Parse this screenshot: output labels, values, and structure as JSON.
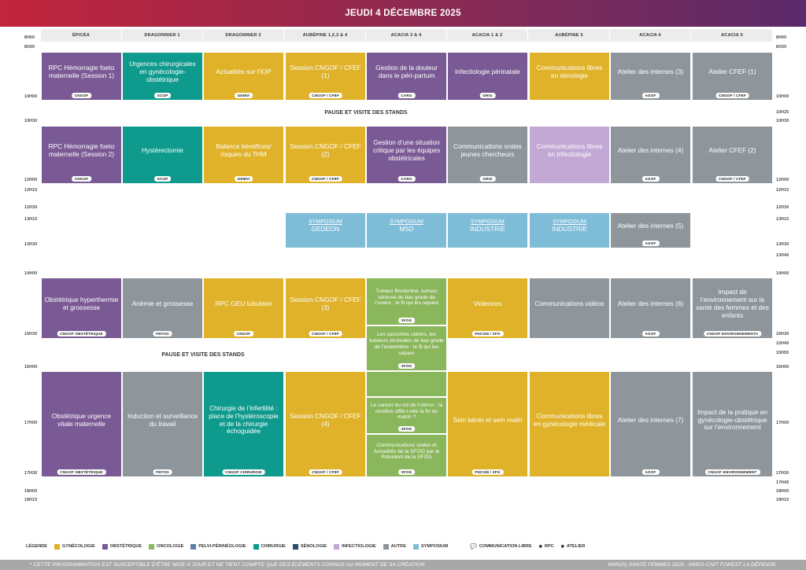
{
  "title": "JEUDI 4 DÉCEMBRE 2025",
  "columns": [
    "ÉPICÉA",
    "DRAGONNIER 1",
    "DRAGONNIER 2",
    "AUBÉPINE 1,2,3 & 4",
    "ACACIA 3 & 4",
    "ACACIA 1 & 2",
    "AUBÉPINE 5",
    "ACACIA 6",
    "ACACIA 5"
  ],
  "times_left": [
    "8H00",
    "8H30",
    "10H00",
    "10H30",
    "12H00",
    "12H15",
    "12H30",
    "13H15",
    "13H30",
    "14H00",
    "15H30",
    "16H00",
    "17H00",
    "17H30",
    "18H00",
    "18H15"
  ],
  "times_right": [
    "8H00",
    "8H30",
    "10H00",
    "10H25",
    "10H30",
    "12H00",
    "12H15",
    "12H30",
    "13H15",
    "13H30",
    "13H40",
    "14H00",
    "15H30",
    "15H40",
    "15H55",
    "16H00",
    "17H00",
    "17H30",
    "17H45",
    "18H00",
    "18H15"
  ],
  "breaks": [
    "PAUSE ET VISITE DES STANDS",
    "PAUSE ET VISITE DES STANDS"
  ],
  "colors": {
    "gynecologie": "#e0b22a",
    "obstetrique": "#7a5a94",
    "oncologie": "#8ab65c",
    "pelvi": "#5c7fa8",
    "chirurgie": "#0f9a8e",
    "senologie": "#2d4c6e",
    "infectiologie": "#c2a8d4",
    "autre": "#8e969b",
    "symposium": "#7fbcd8"
  },
  "events": [
    {
      "title": "RPC Hémorragie foeto maternelle (Session 1)",
      "badge": "CNGOF",
      "cat": "obstetrique"
    },
    {
      "title": "Urgences chirurgicales en gynécologie-obstétrique",
      "badge": "SCGP",
      "cat": "chirurgie"
    },
    {
      "title": "Actualités sur l’IOP",
      "badge": "GEMVI",
      "cat": "gynecologie"
    },
    {
      "title": "Session CNGOF / CFEF (1)",
      "badge": "CNGOF / CFEF",
      "cat": "gynecologie"
    },
    {
      "title": "Gestion de la douleur dans le péri-partum",
      "badge": "CARO",
      "cat": "obstetrique"
    },
    {
      "title": "Infectiologie périnatale",
      "badge": "GRIG",
      "cat": "obstetrique"
    },
    {
      "title": "Communications libres en sénologie",
      "badge": "",
      "cat": "gynecologie"
    },
    {
      "title": "Atelier des internes (3)",
      "badge": "AGOF",
      "cat": "autre"
    },
    {
      "title": "Atelier CFEF (1)",
      "badge": "CNGOF / CFEF",
      "cat": "autre"
    },
    {
      "title": "RPC Hémorragie foeto maternelle (Session 2)",
      "badge": "CNGOF",
      "cat": "obstetrique"
    },
    {
      "title": "Hystérectomie",
      "badge": "SCGP",
      "cat": "chirurgie"
    },
    {
      "title": "Balance bénéfices/ risques du THM",
      "badge": "GEMVI",
      "cat": "gynecologie"
    },
    {
      "title": "Session CNGOF / CFEF (2)",
      "badge": "CNGOF / CFEF",
      "cat": "gynecologie"
    },
    {
      "title": "Gestion d’une situation critique par les équipes obstétricales",
      "badge": "CARO",
      "cat": "obstetrique"
    },
    {
      "title": "Communications orales jeunes chercheurs",
      "badge": "GRIG",
      "cat": "autre"
    },
    {
      "title": "Communications libres en infectiologie",
      "badge": "",
      "cat": "infectiologie"
    },
    {
      "title": "Atelier des internes (4)",
      "badge": "AGOF",
      "cat": "autre"
    },
    {
      "title": "Atelier CFEF (2)",
      "badge": "CNGOF / CFEF",
      "cat": "autre"
    },
    {
      "title": "SYMPOSIUM",
      "sub": "GEDEON",
      "badge": "",
      "cat": "symposium"
    },
    {
      "title": "SYMPOSIUM",
      "sub": "MSD",
      "badge": "",
      "cat": "symposium"
    },
    {
      "title": "SYMPOSIUM",
      "sub": "INDUSTRIE",
      "badge": "",
      "cat": "symposium"
    },
    {
      "title": "SYMPOSIUM",
      "sub": "INDUSTRIE",
      "badge": "",
      "cat": "symposium"
    },
    {
      "title": "Atelier des internes (5)",
      "badge": "AGOF",
      "cat": "autre"
    },
    {
      "title": "Obstétrique hyperthermie et grossesse",
      "badge": "CNGOF OBSTÉTRIQUE",
      "cat": "obstetrique"
    },
    {
      "title": "Anémie et grossesse",
      "badge": "FEFOG",
      "cat": "autre"
    },
    {
      "title": "RPC GEU tubulaire",
      "badge": "CNGOF",
      "cat": "gynecologie"
    },
    {
      "title": "Session CNGOF / CFEF (3)",
      "badge": "CNGOF / CFEF",
      "cat": "gynecologie"
    },
    {
      "title": "Tumeur Borderline, tumeur séreuse de bas grade de l’ovaire : le fil qui les sépare",
      "badge": "SFOG",
      "cat": "oncologie"
    },
    {
      "title": "Les sarcomes utérins, les tumeurs stromales de bas grade de l’endomètre : le fil qui les sépare",
      "badge": "SFOG",
      "cat": "oncologie"
    },
    {
      "title": "Violences",
      "badge": "FNCGM / SFG",
      "cat": "gynecologie"
    },
    {
      "title": "Communications vidéos",
      "badge": "",
      "cat": "autre"
    },
    {
      "title": "Atelier des internes (6)",
      "badge": "AGOF",
      "cat": "autre"
    },
    {
      "title": "Impact de l’environnement sur la santé des femmes et des enfants",
      "badge": "CNGOF ENVIRONNEMENTX",
      "cat": "autre"
    },
    {
      "title": "Obstétrique urgence vitale maternelle",
      "badge": "CNGOF OBSTÉTRIQUE",
      "cat": "obstetrique"
    },
    {
      "title": "Induction et surveillance du travail",
      "badge": "FEFOG",
      "cat": "autre"
    },
    {
      "title": "Chirurgie de l’infertilité : place de l’hystéroscopie et de la chirurgie échoguidée",
      "badge": "CNGOF CHIRURGIE",
      "cat": "chirurgie"
    },
    {
      "title": "Session CNGOF / CFEF (4)",
      "badge": "CNGOF / CFEF",
      "cat": "gynecologie"
    },
    {
      "title": "Le cancer du col de l’utérus : la récidive siffle-t-elle la fin du match ?",
      "badge": "SFOG",
      "cat": "oncologie"
    },
    {
      "title": "Communications orales et Actualités de la SFOG par le Président de la SFOG",
      "badge": "SFOG",
      "cat": "oncologie"
    },
    {
      "title": "Sein bénin et sein malin",
      "badge": "FNCGM / SFG",
      "cat": "gynecologie"
    },
    {
      "title": "Communications libres en gynécologie médicale",
      "badge": "",
      "cat": "gynecologie"
    },
    {
      "title": "Atelier des internes (7)",
      "badge": "AGOF",
      "cat": "autre"
    },
    {
      "title": "Impact de la pratique en gynécologie-obstétrique sur l’environnement",
      "badge": "CNGOF ENVIRONNEMENT",
      "cat": "autre"
    }
  ],
  "legend": {
    "title": "LÉGENDE",
    "items": [
      {
        "label": "GYNÉCOLOGIE",
        "cat": "gynecologie"
      },
      {
        "label": "OBSTÉTRIQUE",
        "cat": "obstetrique"
      },
      {
        "label": "ONCOLOGIE",
        "cat": "oncologie"
      },
      {
        "label": "PELVI-PÉRINÉOLOGIE",
        "cat": "pelvi"
      },
      {
        "label": "CHIRURGIE",
        "cat": "chirurgie"
      },
      {
        "label": "SÉNOLOGIE",
        "cat": "senologie"
      },
      {
        "label": "INFECTIOLOGIE",
        "cat": "infectiologie"
      },
      {
        "label": "AUTRE",
        "cat": "autre"
      },
      {
        "label": "SYMPOSIUM",
        "cat": "symposium"
      }
    ],
    "icons": [
      {
        "label": "COMMUNICATION LIBRE",
        "icon": "speech-bubbles-icon",
        "glyph": "💬"
      },
      {
        "label": "RPC",
        "icon": "tag-icon",
        "glyph": "■"
      },
      {
        "label": "ATELIER",
        "icon": "briefcase-icon",
        "glyph": "■"
      }
    ]
  },
  "footer": {
    "left": "* CETTE PROGRAMMATION EST SUSCEPTIBLE D’ÊTRE MISE À JOUR ET NE TIENT COMPTE QUE DES ÉLÉMENTS CONNUS AU MOMENT DE SA CRÉATION.",
    "right": "PARI(S) SANTÉ FEMMES 2025 - PARIS-CNIT FOREST LA DÉFENSE"
  }
}
